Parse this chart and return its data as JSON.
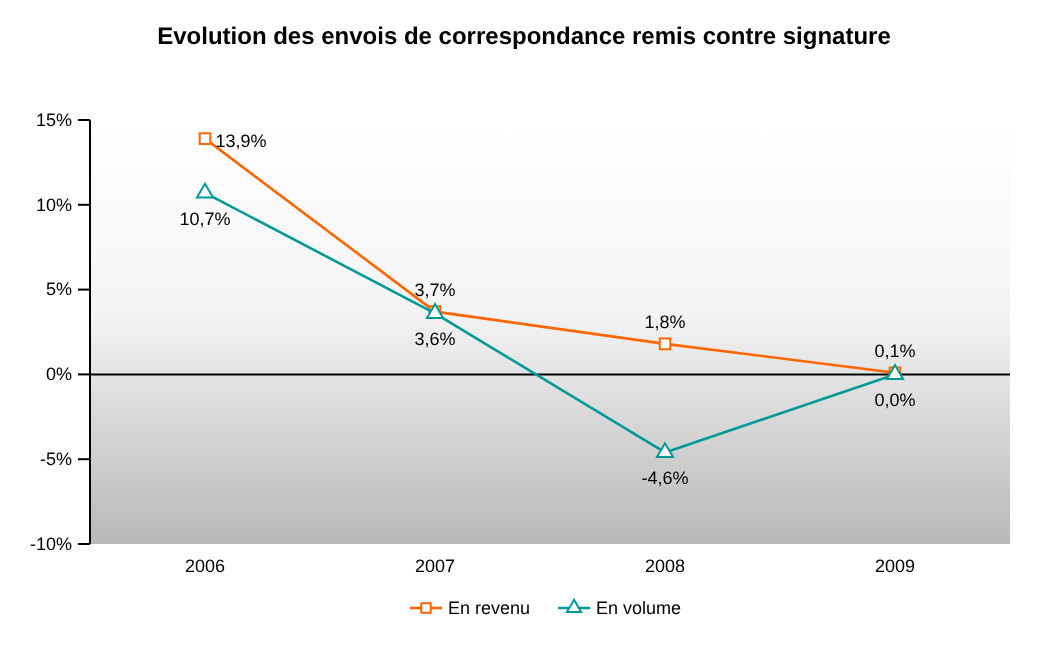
{
  "chart_data": {
    "type": "line",
    "title": "Evolution des envois de correspondance remis contre signature",
    "categories": [
      "2006",
      "2007",
      "2008",
      "2009"
    ],
    "series": [
      {
        "name": "En revenu",
        "color": "#ff6600",
        "marker": "square",
        "values": [
          13.9,
          3.7,
          1.8,
          0.1
        ],
        "value_labels": [
          "13,9%",
          "3,7%",
          "1,8%",
          "0,1%"
        ]
      },
      {
        "name": "En volume",
        "color": "#009999",
        "marker": "triangle",
        "values": [
          10.7,
          3.6,
          -4.6,
          0.0
        ],
        "value_labels": [
          "10,7%",
          "3,6%",
          "-4,6%",
          "0,0%"
        ]
      }
    ],
    "ylim": [
      -10,
      15
    ],
    "yticks": [
      {
        "value": -10,
        "label": "-10%"
      },
      {
        "value": -5,
        "label": "-5%"
      },
      {
        "value": 0,
        "label": "0%"
      },
      {
        "value": 5,
        "label": "5%"
      },
      {
        "value": 10,
        "label": "10%"
      },
      {
        "value": 15,
        "label": "15%"
      }
    ],
    "legend": "bottom"
  }
}
